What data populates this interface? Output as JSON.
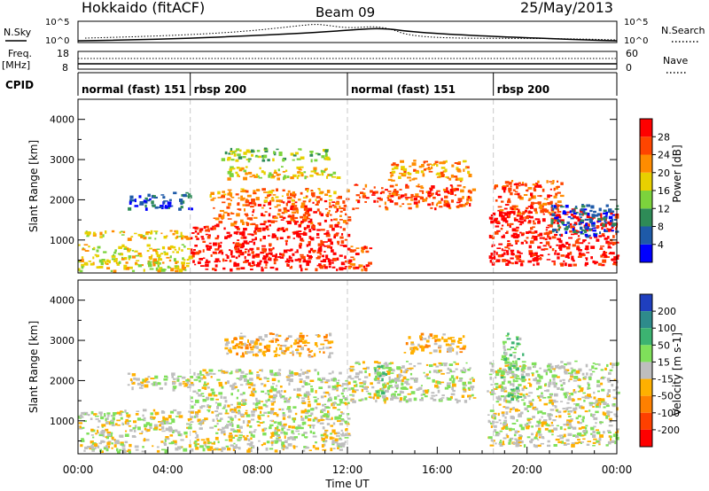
{
  "header": {
    "title": "Hokkaido (fitACF)",
    "beam": "Beam 09",
    "date": "25/May/2013"
  },
  "top_panels": {
    "nsky": {
      "label": "N.Sky",
      "tick_top": "10^5",
      "tick_bottom": "10^0",
      "right_label": "N.Search",
      "right_tick_top": "10^5",
      "right_tick_bottom": "10^0"
    },
    "freq": {
      "label_line1": "Freq.",
      "label_line2": "[MHz]",
      "tick_top": "18",
      "tick_bottom": "8",
      "right_label": "Nave",
      "right_tick_top": "60",
      "right_tick_bottom": "0"
    },
    "cpid": {
      "label": "CPID",
      "segments": [
        {
          "name": "normal (fast) 151",
          "start_hour": 0
        },
        {
          "name": "rbsp 200",
          "start_hour": 5
        },
        {
          "name": "normal (fast) 151",
          "start_hour": 12
        },
        {
          "name": "rbsp 200",
          "start_hour": 18.5
        }
      ]
    }
  },
  "chart_data": [
    {
      "type": "heatmap",
      "panel": "power",
      "ylabel": "Slant Range [km]",
      "xlabel": "",
      "y_ticks": [
        "1000",
        "2000",
        "3000",
        "4000"
      ],
      "ylim": [
        180,
        4500
      ],
      "xlim_hours": [
        0,
        24
      ],
      "colorbar_label": "Power [dB]",
      "colorbar_ticks": [
        "4",
        "8",
        "12",
        "16",
        "20",
        "24",
        "28"
      ],
      "colorbar_colors": [
        "#0000ff",
        "#1e5aa8",
        "#2e8b57",
        "#7cd33c",
        "#e8d000",
        "#ff8c00",
        "#ff4500",
        "#ff0000"
      ],
      "regions": [
        {
          "x0": 0,
          "x1": 5,
          "y0": 250,
          "y1": 900,
          "level": 4
        },
        {
          "x0": 0.2,
          "x1": 5,
          "y0": 1050,
          "y1": 1250,
          "level": 4
        },
        {
          "x0": 2.2,
          "x1": 5,
          "y0": 1800,
          "y1": 2200,
          "level": 1
        },
        {
          "x0": 5,
          "x1": 12,
          "y0": 280,
          "y1": 1400,
          "level": 7
        },
        {
          "x0": 6,
          "x1": 12,
          "y0": 1400,
          "y1": 2000,
          "level": 6
        },
        {
          "x0": 5.8,
          "x1": 12,
          "y0": 2000,
          "y1": 2300,
          "level": 5
        },
        {
          "x0": 6.5,
          "x1": 11.6,
          "y0": 2550,
          "y1": 2850,
          "level": 4
        },
        {
          "x0": 6.3,
          "x1": 11.2,
          "y0": 3000,
          "y1": 3300,
          "level": 3
        },
        {
          "x0": 12,
          "x1": 13,
          "y0": 250,
          "y1": 900,
          "level": 6
        },
        {
          "x0": 12.2,
          "x1": 17.6,
          "y0": 1800,
          "y1": 2400,
          "level": 6
        },
        {
          "x0": 13.8,
          "x1": 17.4,
          "y0": 2500,
          "y1": 3000,
          "level": 5
        },
        {
          "x0": 18.3,
          "x1": 24,
          "y0": 400,
          "y1": 1800,
          "level": 7
        },
        {
          "x0": 18.5,
          "x1": 21.5,
          "y0": 1700,
          "y1": 2500,
          "level": 6
        },
        {
          "x0": 21,
          "x1": 24,
          "y0": 1100,
          "y1": 1900,
          "level": 1
        }
      ]
    },
    {
      "type": "heatmap",
      "panel": "velocity",
      "ylabel": "Slant Range [km]",
      "xlabel": "Time UT",
      "x_ticks": [
        "00:00",
        "04:00",
        "08:00",
        "12:00",
        "16:00",
        "20:00",
        "00:00"
      ],
      "y_ticks": [
        "1000",
        "2000",
        "3000",
        "4000"
      ],
      "ylim": [
        180,
        4500
      ],
      "xlim_hours": [
        0,
        24
      ],
      "colorbar_label": "Velocity [m s-1]",
      "colorbar_ticks": [
        "200",
        "100",
        "50",
        "15",
        "-15",
        "-50",
        "-100",
        "-200"
      ],
      "colorbar_colors": [
        "#1f3fbf",
        "#2e8b8b",
        "#3cb371",
        "#7fe05a",
        "#bebebe",
        "#ffb000",
        "#ff8000",
        "#ff4000",
        "#ff0000"
      ],
      "regions": [
        {
          "x0": 0,
          "x1": 5,
          "y0": 250,
          "y1": 1300,
          "level": 4
        },
        {
          "x0": 2.2,
          "x1": 5,
          "y0": 1800,
          "y1": 2200,
          "level": 4
        },
        {
          "x0": 5,
          "x1": 12,
          "y0": 280,
          "y1": 2300,
          "level": 4
        },
        {
          "x0": 6.5,
          "x1": 11.2,
          "y0": 2600,
          "y1": 3200,
          "level": 5
        },
        {
          "x0": 12,
          "x1": 17.6,
          "y0": 1500,
          "y1": 2500,
          "level": 4
        },
        {
          "x0": 13,
          "x1": 14,
          "y0": 1600,
          "y1": 2400,
          "level": 3
        },
        {
          "x0": 14.5,
          "x1": 17.2,
          "y0": 2700,
          "y1": 3200,
          "level": 5
        },
        {
          "x0": 18.2,
          "x1": 24,
          "y0": 400,
          "y1": 2500,
          "level": 4
        },
        {
          "x0": 18.8,
          "x1": 19.8,
          "y0": 1500,
          "y1": 3200,
          "level": 3
        }
      ]
    }
  ]
}
